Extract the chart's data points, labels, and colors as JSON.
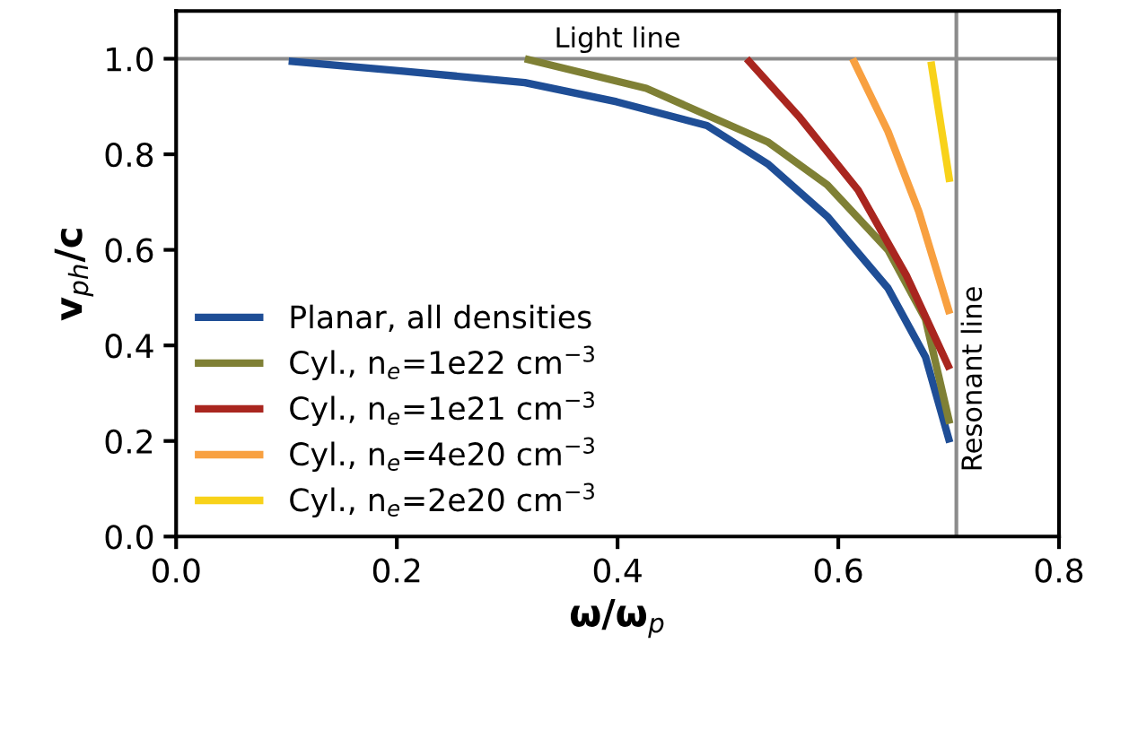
{
  "chart_data": {
    "type": "line",
    "xlabel": "ω/ω$_{p}$",
    "ylabel": "v$_{ph}$/c",
    "xlim": [
      0.0,
      0.8
    ],
    "xticks": [
      {
        "value": 0,
        "label": "0.0"
      },
      0.2,
      0.4,
      0.6,
      0.8
    ],
    "ylim": [
      0.0,
      1.1
    ],
    "yticks": [
      {
        "value": 0,
        "label": "0.0"
      },
      0.2,
      0.4,
      0.6,
      0.8,
      {
        "value": 1,
        "label": "1.0"
      }
    ],
    "grid": false,
    "legend": "lower left",
    "line_style": "solid",
    "marker": "none",
    "series": [
      {
        "name": "Planar, all densities",
        "color": "#1f4e96",
        "x": [
          0.102,
          0.206,
          0.316,
          0.399,
          0.481,
          0.536,
          0.59,
          0.645,
          0.679,
          0.701
        ],
        "values": [
          0.995,
          0.974,
          0.95,
          0.91,
          0.86,
          0.78,
          0.67,
          0.52,
          0.376,
          0.197
        ]
      },
      {
        "name": "Cyl., n$_{e}$=1e22 cm$^{−3}$",
        "color": "#7f8035",
        "x": [
          0.316,
          0.426,
          0.536,
          0.59,
          0.645,
          0.679,
          0.701
        ],
        "values": [
          1.0,
          0.938,
          0.826,
          0.736,
          0.6,
          0.455,
          0.236
        ]
      },
      {
        "name": "Cyl., n$_{e}$=1e21 cm$^{−3}$",
        "color": "#a9261f",
        "x": [
          0.517,
          0.564,
          0.618,
          0.662,
          0.701
        ],
        "values": [
          1.0,
          0.88,
          0.725,
          0.545,
          0.35
        ]
      },
      {
        "name": "Cyl., n$_{e}$=4e20 cm$^{−3}$",
        "color": "#f8a040",
        "x": [
          0.613,
          0.645,
          0.673,
          0.701
        ],
        "values": [
          1.0,
          0.848,
          0.68,
          0.466
        ]
      },
      {
        "name": "Cyl., n$_{e}$=2e20 cm$^{−3}$",
        "color": "#f8d21a",
        "x": [
          0.684,
          0.701
        ],
        "values": [
          0.994,
          0.742
        ]
      }
    ],
    "ref_lines": [
      {
        "axis": "y",
        "value": 1.0,
        "label": "Light line",
        "color": "#8c8c8c"
      },
      {
        "axis": "x",
        "value": 0.707,
        "label": "Resonant line",
        "color": "#8c8c8c"
      }
    ]
  }
}
